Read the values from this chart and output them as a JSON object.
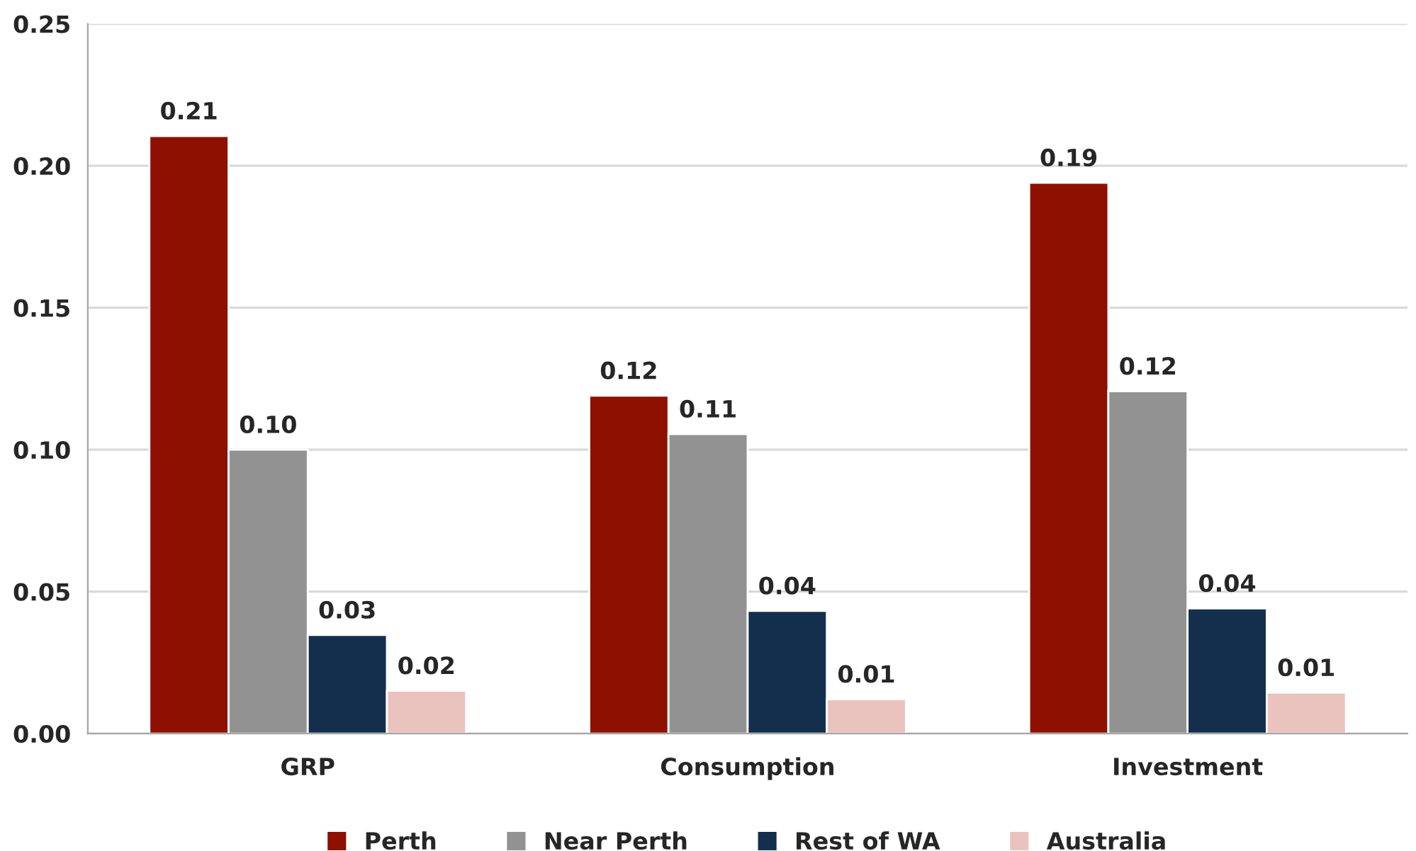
{
  "chart_data": {
    "type": "bar",
    "categories": [
      "GRP",
      "Consumption",
      "Investment"
    ],
    "series": [
      {
        "name": "Perth",
        "color": "#8e1000",
        "values": [
          0.2105,
          0.119,
          0.194
        ],
        "value_labels": [
          "0.21",
          "0.12",
          "0.19"
        ]
      },
      {
        "name": "Near Perth",
        "color": "#929292",
        "values": [
          0.1,
          0.1055,
          0.1206
        ],
        "value_labels": [
          "0.10",
          "0.11",
          "0.12"
        ]
      },
      {
        "name": "Rest of WA",
        "color": "#142f4d",
        "values": [
          0.0347,
          0.0432,
          0.0441
        ],
        "value_labels": [
          "0.03",
          "0.04",
          "0.04"
        ]
      },
      {
        "name": "Australia",
        "color": "#eac3bf",
        "values": [
          0.0151,
          0.0121,
          0.0144
        ],
        "value_labels": [
          "0.02",
          "0.01",
          "0.01"
        ]
      }
    ],
    "ylim": [
      0,
      0.25
    ],
    "yticks": [
      {
        "value": 0,
        "label": "0.00"
      },
      {
        "value": 0.05,
        "label": "0.05"
      },
      {
        "value": 0.1,
        "label": "0.10"
      },
      {
        "value": 0.15,
        "label": "0.15"
      },
      {
        "value": 0.2,
        "label": "0.20"
      },
      {
        "value": 0.25,
        "label": "0.25"
      }
    ],
    "grid": "y",
    "legend": "bottom"
  }
}
